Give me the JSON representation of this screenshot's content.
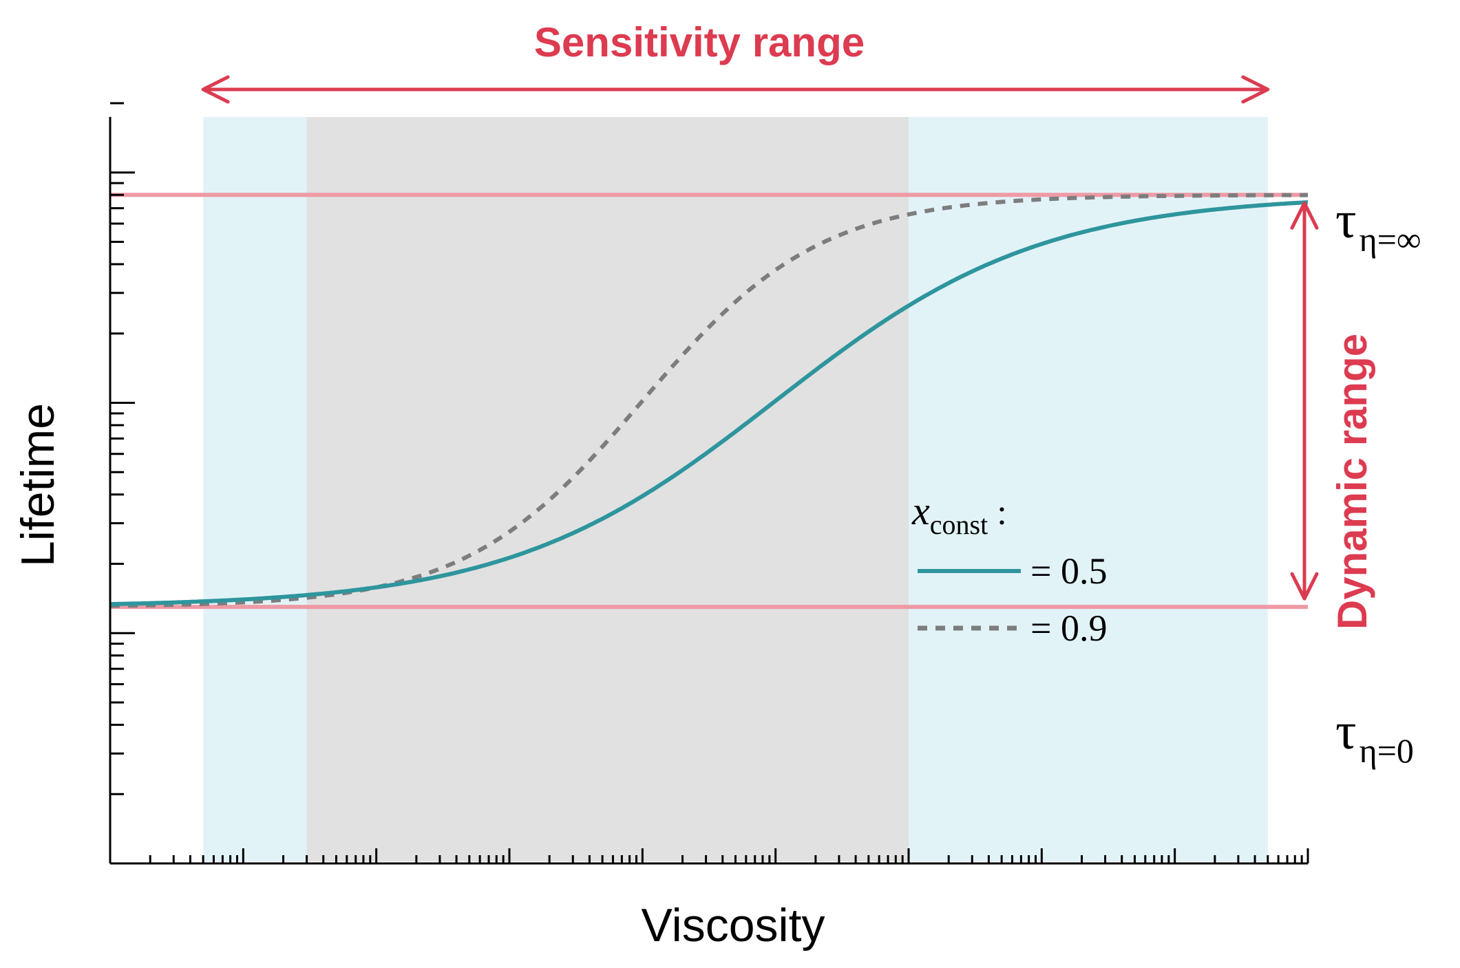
{
  "colors": {
    "accent_red": "#dc3b50",
    "bound_line": "#ee9aa5",
    "region_outer": "#e2f3f8",
    "region_inner": "#e1e1e1",
    "curve_teal": "#2e959d",
    "curve_gray": "#7d7d7d",
    "axis": "#000000"
  },
  "chart_data": {
    "type": "line",
    "title": "",
    "xlabel": "Viscosity",
    "ylabel": "Lifetime",
    "x_scale": "log",
    "y_scale": "log",
    "xlim": [
      0.01,
      10000000
    ],
    "ylim": [
      0.01,
      20
    ],
    "x_tick_labels_shown": false,
    "y_tick_labels_shown": false,
    "tau_min": 0.13,
    "tau_max": 8.0,
    "series": [
      {
        "name": "= 0.5",
        "x_const": 0.5,
        "style": "solid",
        "color": "#2e959d",
        "midpoint_viscosity": 1000,
        "steepness": 1.0
      },
      {
        "name": "= 0.9",
        "x_const": 0.9,
        "style": "dashed",
        "color": "#7d7d7d",
        "midpoint_viscosity": 100,
        "steepness": 1.5
      }
    ],
    "regions": [
      {
        "name": "sensitivity-range-outer",
        "x_start": 0.05,
        "x_end": 5000000,
        "color": "#e2f3f8"
      },
      {
        "name": "sensitivity-range-inner",
        "x_start": 0.3,
        "x_end": 10000,
        "color": "#e1e1e1"
      }
    ],
    "reference_lines": [
      {
        "name": "tau-eta-infinity",
        "y": 8.0,
        "label_symbol": "τ",
        "label_subscript": "η=∞"
      },
      {
        "name": "tau-eta-zero",
        "y": 0.13,
        "label_symbol": "τ",
        "label_subscript": "η=0"
      }
    ],
    "annotations": {
      "sensitivity_range": "Sensitivity range",
      "dynamic_range": "Dynamic range"
    },
    "legend": {
      "title_var": "x",
      "title_sub": "const",
      "title_suffix": " :",
      "placement": "center-right"
    }
  }
}
